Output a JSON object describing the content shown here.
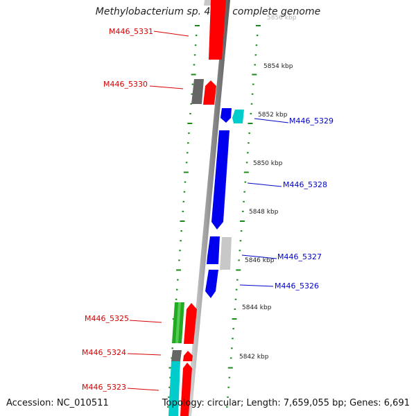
{
  "title": "Methylobacterium sp. 4-46, complete genome",
  "footer": {
    "accession": "Accession: NC_010511",
    "topology": "Topology: circular; Length: 7,659,055 bp; Genes: 6,691"
  },
  "colors": {
    "forward_gene": "#ff0000",
    "reverse_gene": "#0000ee",
    "rna_gene": "#22aa22",
    "cyan_gene": "#00cccc",
    "gray_gene": "#666666",
    "light_gray_gene": "#c8c8c8",
    "tick": "#1a8a1a",
    "red_label": "#d40000",
    "blue_label": "#0000cc"
  },
  "kbp_ticks": [
    "5856 kbp",
    "5854 kbp",
    "5852 kbp",
    "5850 kbp",
    "5848 kbp",
    "5846 kbp",
    "5844 kbp",
    "5842 kbp"
  ],
  "gene_labels": {
    "forward": [
      "M446_5331",
      "M446_5330",
      "M446_5325",
      "M446_5324",
      "M446_5323"
    ],
    "reverse": [
      "M446_5329",
      "M446_5328",
      "M446_5327",
      "M446_5326"
    ]
  }
}
